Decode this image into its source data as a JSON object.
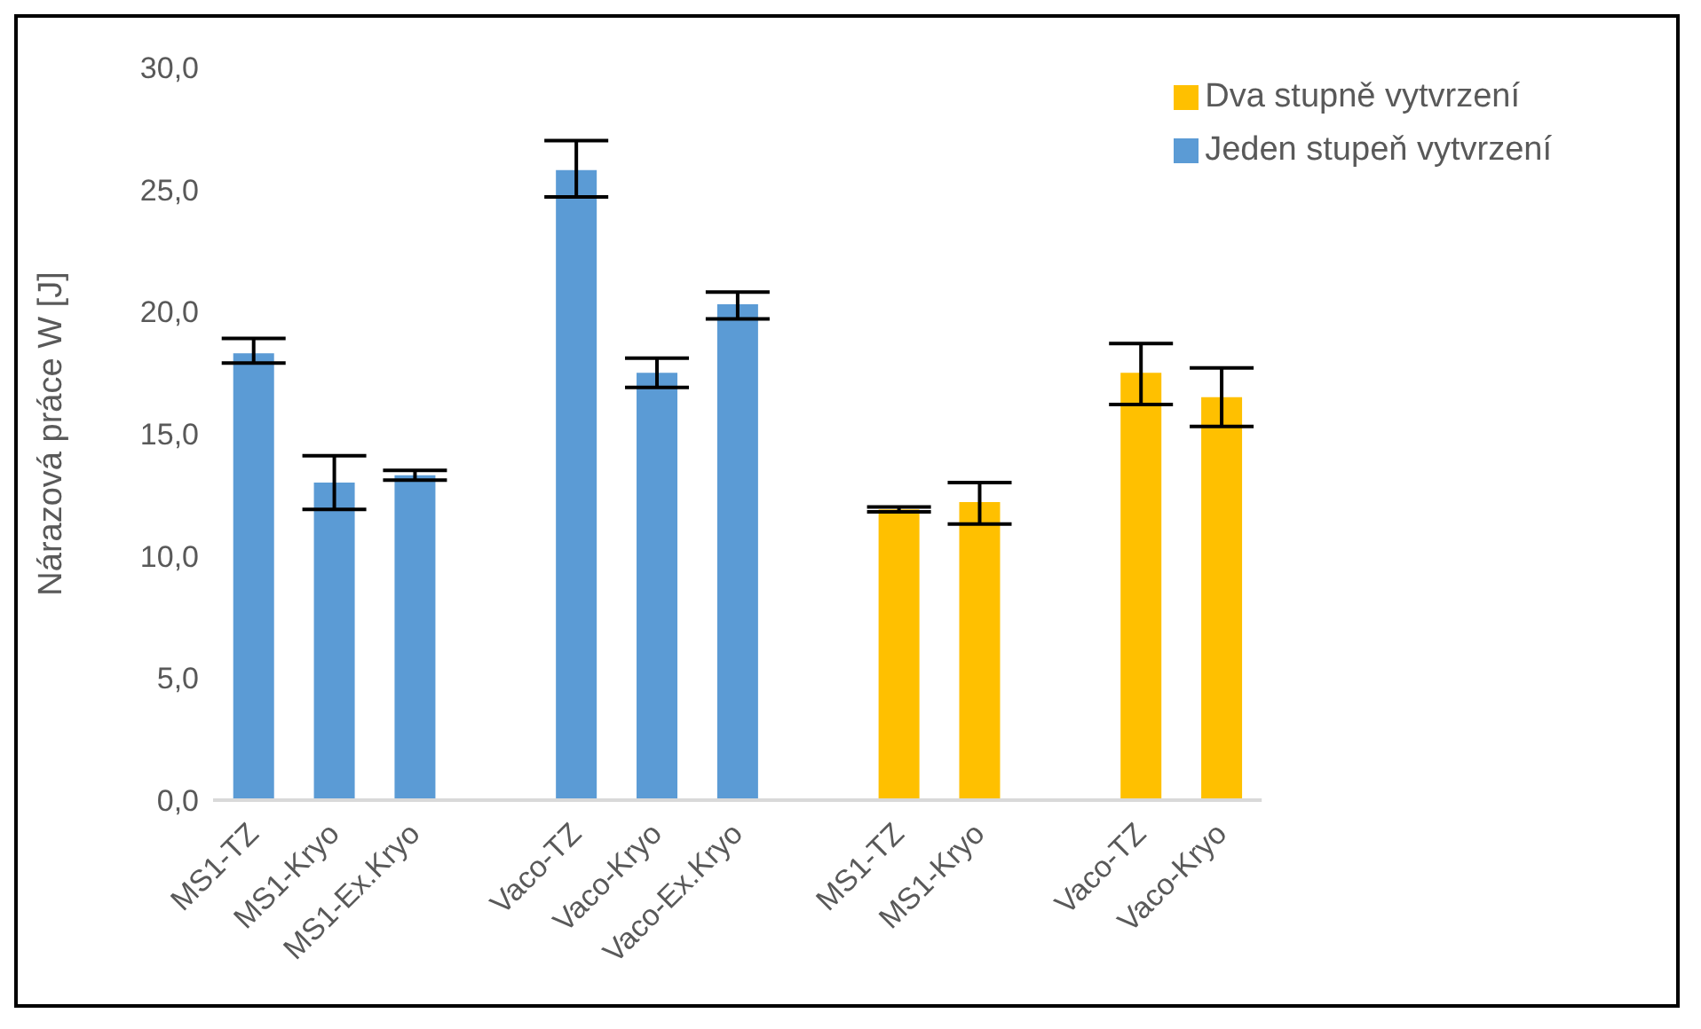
{
  "chart_data": {
    "type": "bar",
    "ylabel": "Nárazová práce W [J]",
    "categories": [
      "MS1-TZ",
      "MS1-Kryo",
      "MS1-Ex.Kryo",
      null,
      "Vaco-TZ",
      "Vaco-Kryo",
      "Vaco-Ex.Kryo",
      null,
      "MS1-TZ",
      "MS1-Kryo",
      null,
      "Vaco-TZ",
      "Vaco-Kryo"
    ],
    "series": [
      {
        "name": "Jeden stupeň vytvrzení",
        "color": "#5b9bd5",
        "values": [
          18.3,
          13.0,
          13.3,
          null,
          25.8,
          17.5,
          20.3,
          null,
          null,
          null,
          null,
          null,
          null
        ],
        "errors": [
          [
            17.9,
            18.9
          ],
          [
            11.9,
            14.1
          ],
          0.2,
          null,
          [
            24.7,
            27.0
          ],
          [
            16.9,
            18.1
          ],
          [
            19.7,
            20.8
          ],
          null,
          null,
          null,
          null,
          null,
          null
        ]
      },
      {
        "name": "Dva stupně vytvrzení",
        "color": "#ffc000",
        "values": [
          null,
          null,
          null,
          null,
          null,
          null,
          null,
          null,
          11.9,
          12.2,
          null,
          17.5,
          16.5
        ],
        "errors": [
          null,
          null,
          null,
          null,
          null,
          null,
          null,
          null,
          0.1,
          [
            11.3,
            13.0
          ],
          null,
          [
            16.2,
            18.7
          ],
          [
            15.3,
            17.7
          ]
        ]
      }
    ],
    "ylim": [
      0,
      30
    ],
    "yticks": [
      {
        "value": 0,
        "label": "0,0"
      },
      {
        "value": 5,
        "label": "5,0"
      },
      {
        "value": 10,
        "label": "10,0"
      },
      {
        "value": 15,
        "label": "15,0"
      },
      {
        "value": 20,
        "label": "20,0"
      },
      {
        "value": 25,
        "label": "25,0"
      },
      {
        "value": 30,
        "label": "30,0"
      }
    ],
    "grid": false,
    "legend": "top right"
  }
}
